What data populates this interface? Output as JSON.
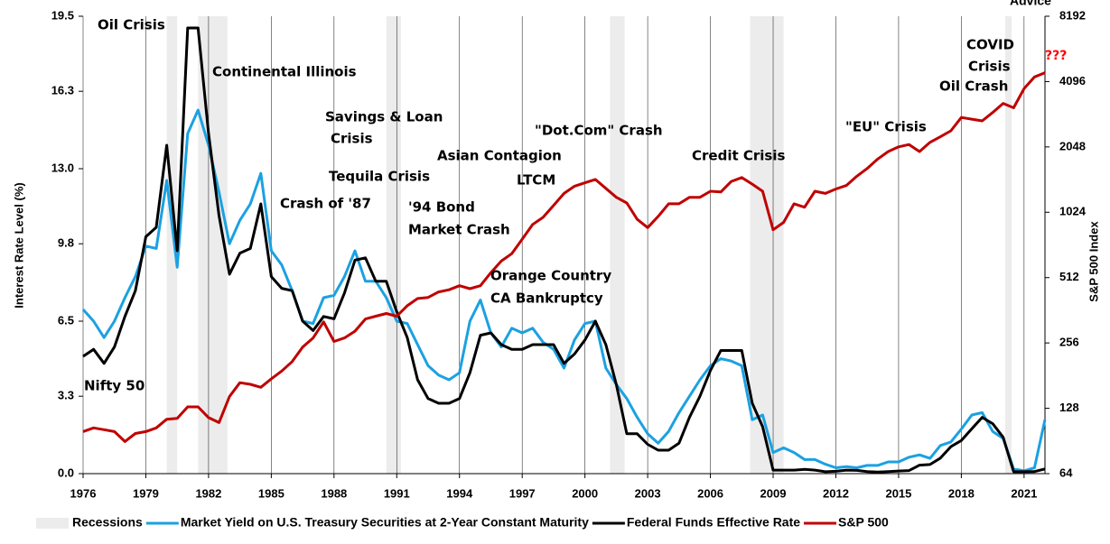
{
  "chart_data": {
    "type": "line",
    "logo": "Advice",
    "ylabel": "Interest Rate Level (%)",
    "y2label": "S&P 500 Index",
    "xlim": [
      1976,
      2022
    ],
    "xticks": [
      1976,
      1979,
      1982,
      1985,
      1988,
      1991,
      1994,
      1997,
      2000,
      2003,
      2006,
      2009,
      2012,
      2015,
      2018,
      2021
    ],
    "ylim": [
      0,
      19.5
    ],
    "yticks": [
      {
        "value": 0,
        "label": "0.0"
      },
      3.3,
      6.5,
      9.8,
      {
        "value": 13,
        "label": "13.0"
      },
      16.3,
      19.5
    ],
    "y2lim": [
      64,
      8192
    ],
    "y2scale": "log2",
    "y2ticks": [
      64,
      128,
      256,
      512,
      1024,
      2048,
      4096,
      8192
    ],
    "vgrid": true,
    "recessions": {
      "name": "Recessions",
      "color": "#ececec",
      "spans": [
        [
          1980.0,
          1980.5
        ],
        [
          1981.5,
          1982.9
        ],
        [
          1990.5,
          1991.2
        ],
        [
          2001.2,
          2001.9
        ],
        [
          2007.9,
          2009.5
        ],
        [
          2020.1,
          2020.4
        ]
      ]
    },
    "x": [
      1976,
      1976.5,
      1977,
      1977.5,
      1978,
      1978.5,
      1979,
      1979.5,
      1980,
      1980.5,
      1981,
      1981.5,
      1982,
      1982.5,
      1983,
      1983.5,
      1984,
      1984.5,
      1985,
      1985.5,
      1986,
      1986.5,
      1987,
      1987.5,
      1988,
      1988.5,
      1989,
      1989.5,
      1990,
      1990.5,
      1991,
      1991.5,
      1992,
      1992.5,
      1993,
      1993.5,
      1994,
      1994.5,
      1995,
      1995.5,
      1996,
      1996.5,
      1997,
      1997.5,
      1998,
      1998.5,
      1999,
      1999.5,
      2000,
      2000.5,
      2001,
      2001.5,
      2002,
      2002.5,
      2003,
      2003.5,
      2004,
      2004.5,
      2005,
      2005.5,
      2006,
      2006.5,
      2007,
      2007.5,
      2008,
      2008.5,
      2009,
      2009.5,
      2010,
      2010.5,
      2011,
      2011.5,
      2012,
      2012.5,
      2013,
      2013.5,
      2014,
      2014.5,
      2015,
      2015.5,
      2016,
      2016.5,
      2017,
      2017.5,
      2018,
      2018.5,
      2019,
      2019.5,
      2020,
      2020.5,
      2021,
      2021.5,
      2022
    ],
    "series": [
      {
        "name": "Market Yield on U.S. Treasury Securities at 2-Year Constant Maturity",
        "color": "#1ba1e2",
        "axis": "y",
        "values": [
          7.0,
          6.5,
          5.8,
          6.5,
          7.5,
          8.4,
          9.7,
          9.6,
          12.5,
          8.8,
          14.5,
          15.5,
          14.0,
          12.0,
          9.8,
          10.8,
          11.5,
          12.8,
          9.5,
          8.9,
          7.8,
          6.5,
          6.4,
          7.5,
          7.6,
          8.4,
          9.5,
          8.2,
          8.2,
          7.5,
          6.5,
          6.4,
          5.5,
          4.6,
          4.2,
          4.0,
          4.3,
          6.5,
          7.4,
          6.0,
          5.4,
          6.2,
          6.0,
          6.2,
          5.6,
          5.3,
          4.5,
          5.7,
          6.4,
          6.5,
          4.5,
          3.8,
          3.2,
          2.4,
          1.7,
          1.3,
          1.8,
          2.6,
          3.3,
          4.0,
          4.6,
          4.9,
          4.8,
          4.6,
          2.3,
          2.5,
          0.9,
          1.1,
          0.9,
          0.6,
          0.6,
          0.4,
          0.25,
          0.3,
          0.25,
          0.35,
          0.35,
          0.5,
          0.5,
          0.7,
          0.8,
          0.65,
          1.2,
          1.35,
          1.9,
          2.5,
          2.6,
          1.8,
          1.5,
          0.2,
          0.12,
          0.25,
          2.3
        ]
      },
      {
        "name": "Federal Funds Effective Rate",
        "color": "#000000",
        "axis": "y",
        "values": [
          5.0,
          5.3,
          4.7,
          5.4,
          6.7,
          7.8,
          10.1,
          10.5,
          14,
          9.5,
          19,
          19,
          14.5,
          11,
          8.5,
          9.4,
          9.6,
          11.5,
          8.4,
          7.9,
          7.8,
          6.5,
          6.1,
          6.7,
          6.6,
          7.7,
          9.1,
          9.2,
          8.2,
          8.2,
          6.9,
          5.8,
          4.0,
          3.2,
          3.0,
          3.0,
          3.2,
          4.3,
          5.9,
          6.0,
          5.5,
          5.3,
          5.3,
          5.5,
          5.5,
          5.5,
          4.7,
          5.1,
          5.7,
          6.5,
          5.5,
          3.8,
          1.7,
          1.7,
          1.25,
          1.0,
          1.0,
          1.3,
          2.4,
          3.3,
          4.4,
          5.25,
          5.25,
          5.25,
          3.0,
          2.0,
          0.15,
          0.15,
          0.15,
          0.18,
          0.15,
          0.08,
          0.1,
          0.15,
          0.14,
          0.09,
          0.07,
          0.09,
          0.11,
          0.13,
          0.36,
          0.39,
          0.66,
          1.15,
          1.41,
          1.91,
          2.4,
          2.13,
          1.55,
          0.08,
          0.08,
          0.09,
          0.2
        ]
      },
      {
        "name": "S&P 500",
        "color": "#c00000",
        "axis": "y2",
        "values": [
          100,
          104,
          102,
          100,
          90,
          98,
          100,
          104,
          114,
          115,
          130,
          130,
          116,
          110,
          145,
          168,
          165,
          160,
          175,
          190,
          210,
          245,
          270,
          320,
          260,
          270,
          290,
          330,
          340,
          350,
          340,
          380,
          410,
          415,
          440,
          450,
          470,
          455,
          470,
          540,
          610,
          660,
          770,
          900,
          970,
          1100,
          1250,
          1350,
          1400,
          1450,
          1320,
          1200,
          1130,
          950,
          870,
          980,
          1120,
          1120,
          1200,
          1200,
          1280,
          1270,
          1420,
          1480,
          1380,
          1280,
          850,
          920,
          1120,
          1080,
          1280,
          1250,
          1310,
          1360,
          1500,
          1630,
          1800,
          1950,
          2050,
          2100,
          1950,
          2150,
          2280,
          2430,
          2800,
          2750,
          2700,
          2950,
          3250,
          3100,
          3800,
          4300,
          4500
        ]
      }
    ],
    "annotations": [
      {
        "text": "Oil Crisis"
      },
      {
        "text": "Continental Illinois"
      },
      {
        "text": "Savings & Loan"
      },
      {
        "text": "Crisis"
      },
      {
        "text": "Tequila Crisis"
      },
      {
        "text": "Crash of '87"
      },
      {
        "text": "'94 Bond"
      },
      {
        "text": "Market Crash"
      },
      {
        "text": "Asian Contagion"
      },
      {
        "text": "LTCM"
      },
      {
        "text": "\"Dot.Com\" Crash"
      },
      {
        "text": "Orange Country"
      },
      {
        "text": "CA Bankruptcy"
      },
      {
        "text": "Credit Crisis"
      },
      {
        "text": "\"EU\" Crisis"
      },
      {
        "text": "COVID"
      },
      {
        "text": "Crisis"
      },
      {
        "text": "Oil Crash"
      },
      {
        "text": "???",
        "color": "#ff0000"
      },
      {
        "text": "Nifty 50"
      }
    ]
  }
}
